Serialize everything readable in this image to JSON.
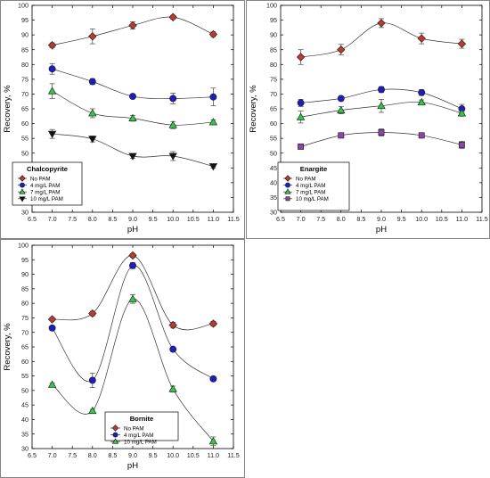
{
  "chart_data": [
    {
      "type": "line",
      "title": "Chalcopyrite",
      "xlabel": "pH",
      "ylabel": "Recovery, %",
      "xlim": [
        6.5,
        11.5
      ],
      "ylim": [
        30,
        100
      ],
      "xticks": [
        6.5,
        7.0,
        7.5,
        8.0,
        8.5,
        9.0,
        9.5,
        10.0,
        10.5,
        11.0,
        11.5
      ],
      "yticks": [
        30,
        35,
        40,
        45,
        50,
        55,
        60,
        65,
        70,
        75,
        80,
        85,
        90,
        95,
        100
      ],
      "x": [
        7.0,
        8.0,
        9.0,
        10.0,
        11.0
      ],
      "legend_position": "bottom-left",
      "series": [
        {
          "name": "No PAM",
          "values": [
            86.5,
            89.5,
            93.2,
            96.0,
            90.2
          ],
          "err": [
            0.8,
            2.5,
            1.2,
            0.6,
            0.8
          ],
          "color": "#c0392b",
          "marker": "diamond"
        },
        {
          "name": "4 mg/L PAM",
          "values": [
            78.5,
            74.2,
            69.2,
            68.5,
            69.0
          ],
          "err": [
            1.8,
            1.0,
            0.5,
            1.8,
            3.0
          ],
          "color": "#1c1cc8",
          "marker": "circle"
        },
        {
          "name": "7 mg/L PAM",
          "values": [
            71.0,
            63.5,
            61.8,
            59.5,
            60.5
          ],
          "err": [
            2.5,
            1.5,
            1.0,
            1.2,
            0.8
          ],
          "color": "#2ecc40",
          "marker": "triangle-up"
        },
        {
          "name": "10 mg/L PAM",
          "values": [
            56.5,
            54.8,
            49.0,
            49.0,
            45.5
          ],
          "err": [
            1.5,
            1.0,
            0.8,
            1.5,
            0.5
          ],
          "color": "#111111",
          "marker": "triangle-down"
        }
      ]
    },
    {
      "type": "line",
      "title": "Enargite",
      "xlabel": "pH",
      "ylabel": "Recovery, %",
      "xlim": [
        6.5,
        11.5
      ],
      "ylim": [
        30,
        100
      ],
      "xticks": [
        6.5,
        7.0,
        7.5,
        8.0,
        8.5,
        9.0,
        9.5,
        10.0,
        10.5,
        11.0,
        11.5
      ],
      "yticks": [
        30,
        35,
        40,
        45,
        50,
        55,
        60,
        65,
        70,
        75,
        80,
        85,
        90,
        95,
        100
      ],
      "x": [
        7.0,
        8.0,
        9.0,
        10.0,
        11.0
      ],
      "legend_position": "bottom-right",
      "series": [
        {
          "name": "No PAM",
          "values": [
            82.5,
            85.0,
            94.0,
            88.8,
            87.0
          ],
          "err": [
            2.5,
            1.8,
            1.5,
            1.8,
            1.5
          ],
          "color": "#c0392b",
          "marker": "diamond"
        },
        {
          "name": "4 mg/L PAM",
          "values": [
            67.0,
            68.5,
            71.5,
            70.5,
            65.0
          ],
          "err": [
            1.2,
            0.6,
            1.0,
            1.0,
            1.5
          ],
          "color": "#1c1cc8",
          "marker": "circle"
        },
        {
          "name": "7 mg/L PAM",
          "values": [
            62.2,
            64.5,
            66.0,
            67.2,
            63.5
          ],
          "err": [
            2.0,
            1.2,
            2.2,
            0.8,
            1.0
          ],
          "color": "#2ecc40",
          "marker": "triangle-up"
        },
        {
          "name": "10 mg/L PAM",
          "values": [
            52.2,
            56.0,
            57.0,
            56.0,
            52.8
          ],
          "err": [
            0.5,
            0.8,
            1.2,
            0.6,
            1.2
          ],
          "color": "#8e44ad",
          "marker": "square"
        }
      ]
    },
    {
      "type": "line",
      "title": "Bornite",
      "xlabel": "pH",
      "ylabel": "Recovery, %",
      "xlim": [
        6.5,
        11.5
      ],
      "ylim": [
        30,
        100
      ],
      "xticks": [
        6.5,
        7.0,
        7.5,
        8.0,
        8.5,
        9.0,
        9.5,
        10.0,
        10.5,
        11.0,
        11.5
      ],
      "yticks": [
        30,
        35,
        40,
        45,
        50,
        55,
        60,
        65,
        70,
        75,
        80,
        85,
        90,
        95,
        100
      ],
      "x": [
        7.0,
        8.0,
        9.0,
        10.0,
        11.0
      ],
      "legend_position": "bottom-center",
      "series": [
        {
          "name": "No PAM",
          "values": [
            74.5,
            76.5,
            96.5,
            72.5,
            73.0
          ],
          "err": [
            0.4,
            0.8,
            0.6,
            1.0,
            0.8
          ],
          "color": "#c0392b",
          "marker": "diamond"
        },
        {
          "name": "4 mg/L PAM",
          "values": [
            71.5,
            53.5,
            93.0,
            64.2,
            54.0
          ],
          "err": [
            0.6,
            2.5,
            1.0,
            0.5,
            0.5
          ],
          "color": "#1c1cc8",
          "marker": "circle"
        },
        {
          "name": "10 mg/L PAM",
          "values": [
            52.0,
            43.0,
            81.5,
            50.5,
            32.5
          ],
          "err": [
            0.5,
            0.5,
            1.5,
            1.0,
            1.5
          ],
          "color": "#2ecc40",
          "marker": "triangle-up"
        }
      ]
    }
  ]
}
